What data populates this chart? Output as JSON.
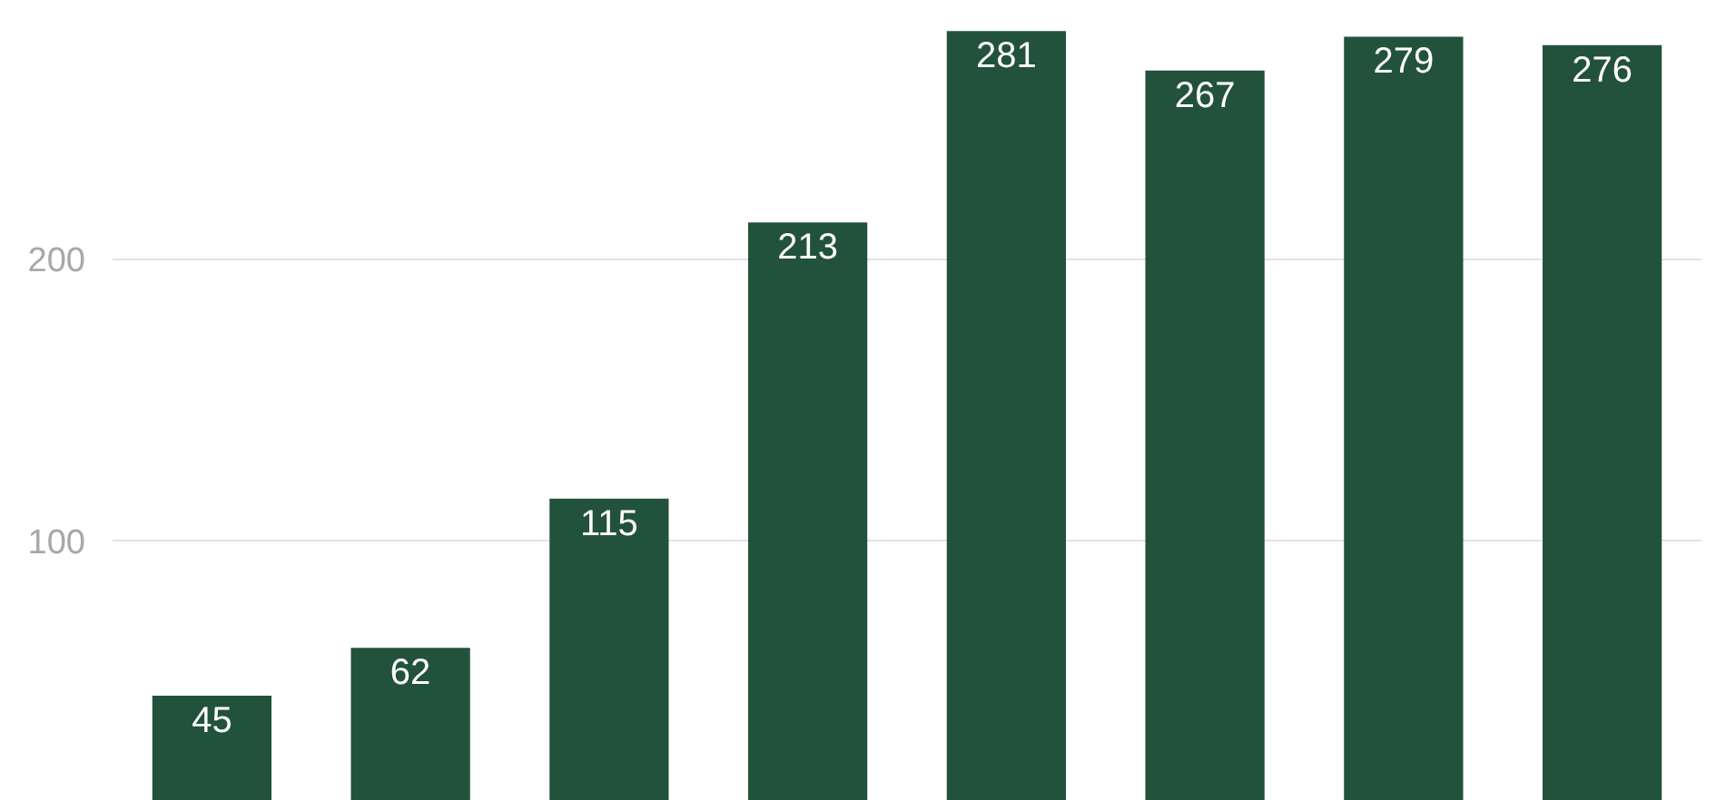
{
  "chart_data": {
    "type": "bar",
    "categories": [
      null,
      null,
      null,
      null,
      null,
      null,
      null,
      null
    ],
    "values": [
      45,
      62,
      115,
      213,
      281,
      267,
      279,
      276
    ],
    "color": "#22523b",
    "ylim": [
      8,
      292
    ],
    "yticks": [
      100,
      200
    ],
    "grid": "y",
    "data_labels": true,
    "tick_labels": "y"
  }
}
